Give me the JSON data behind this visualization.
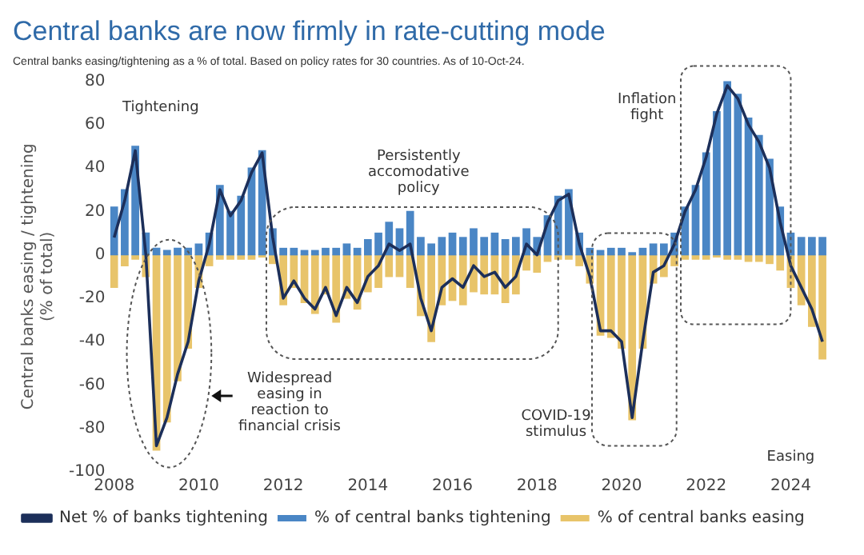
{
  "chart_data": {
    "type": "bar",
    "title": "Central banks are now firmly in rate-cutting mode",
    "subtitle": "Central banks easing/tightening as a % of total. Based on policy rates for 30 countries. As of 10-Oct-24.",
    "ylabel": "Central banks easing / tightening (% of total)",
    "x": [
      2008,
      2008.25,
      2008.5,
      2008.75,
      2009,
      2009.25,
      2009.5,
      2009.75,
      2010,
      2010.25,
      2010.5,
      2010.75,
      2011,
      2011.25,
      2011.5,
      2011.75,
      2012,
      2012.25,
      2012.5,
      2012.75,
      2013,
      2013.25,
      2013.5,
      2013.75,
      2014,
      2014.25,
      2014.5,
      2014.75,
      2015,
      2015.25,
      2015.5,
      2015.75,
      2016,
      2016.25,
      2016.5,
      2016.75,
      2017,
      2017.25,
      2017.5,
      2017.75,
      2018,
      2018.25,
      2018.5,
      2018.75,
      2019,
      2019.25,
      2019.5,
      2019.75,
      2020,
      2020.25,
      2020.5,
      2020.75,
      2021,
      2021.25,
      2021.5,
      2021.75,
      2022,
      2022.25,
      2022.5,
      2022.75,
      2023,
      2023.25,
      2023.5,
      2023.75,
      2024,
      2024.25,
      2024.5,
      2024.75
    ],
    "series": [
      {
        "name": "% of central banks tightening",
        "color": "#4a86c5",
        "values": [
          22,
          30,
          50,
          10,
          3,
          2,
          3,
          3,
          5,
          10,
          32,
          20,
          27,
          40,
          48,
          12,
          3,
          3,
          2,
          2,
          3,
          3,
          5,
          3,
          7,
          10,
          15,
          12,
          20,
          8,
          5,
          8,
          10,
          8,
          12,
          8,
          10,
          7,
          8,
          12,
          8,
          18,
          27,
          30,
          10,
          3,
          2,
          3,
          3,
          1,
          3,
          5,
          5,
          10,
          22,
          32,
          47,
          66,
          80,
          74,
          63,
          55,
          44,
          22,
          10,
          8,
          8,
          8
        ]
      },
      {
        "name": "% of central banks easing",
        "color": "#e8c46a",
        "values": [
          -15,
          -5,
          -2,
          -10,
          -90,
          -77,
          -58,
          -43,
          -15,
          -5,
          -2,
          -2,
          -2,
          -2,
          -1,
          -4,
          -23,
          -15,
          -22,
          -27,
          -18,
          -31,
          -20,
          -25,
          -17,
          -15,
          -10,
          -10,
          -15,
          -28,
          -40,
          -23,
          -21,
          -23,
          -17,
          -18,
          -18,
          -22,
          -18,
          -7,
          -8,
          -3,
          -2,
          -2,
          -5,
          -13,
          -37,
          -38,
          -43,
          -76,
          -43,
          -13,
          -10,
          -5,
          -2,
          -2,
          -2,
          -1,
          -2,
          -2,
          -3,
          -3,
          -4,
          -7,
          -15,
          -23,
          -33,
          -48
        ]
      },
      {
        "name": "Net % of banks tightening",
        "type": "line",
        "color": "#1c2f5a",
        "values": [
          8,
          25,
          48,
          0,
          -88,
          -75,
          -55,
          -40,
          -12,
          5,
          30,
          18,
          25,
          38,
          47,
          8,
          -20,
          -12,
          -20,
          -25,
          -15,
          -28,
          -15,
          -22,
          -10,
          -5,
          5,
          2,
          5,
          -20,
          -35,
          -15,
          -11,
          -15,
          -5,
          -10,
          -8,
          -15,
          -10,
          5,
          0,
          15,
          25,
          28,
          5,
          -10,
          -35,
          -35,
          -40,
          -75,
          -40,
          -8,
          -5,
          5,
          20,
          30,
          45,
          65,
          78,
          72,
          60,
          52,
          40,
          15,
          -5,
          -15,
          -25,
          -40
        ]
      }
    ],
    "stacked": true,
    "xlim": [
      2007.9,
      2024.9
    ],
    "xticks": [
      2008,
      2010,
      2012,
      2014,
      2016,
      2018,
      2020,
      2022,
      2024
    ],
    "ylim": [
      -100,
      80
    ],
    "yticks": [
      -100,
      -80,
      -60,
      -40,
      -20,
      0,
      20,
      40,
      60,
      80
    ],
    "grid": false,
    "legend": "bottom",
    "annotations": [
      "Tightening",
      "Persistently accomodative policy",
      "Widespread easing in reaction to financial crisis",
      "COVID-19 stimulus",
      "Inflation fight",
      "Easing"
    ]
  }
}
